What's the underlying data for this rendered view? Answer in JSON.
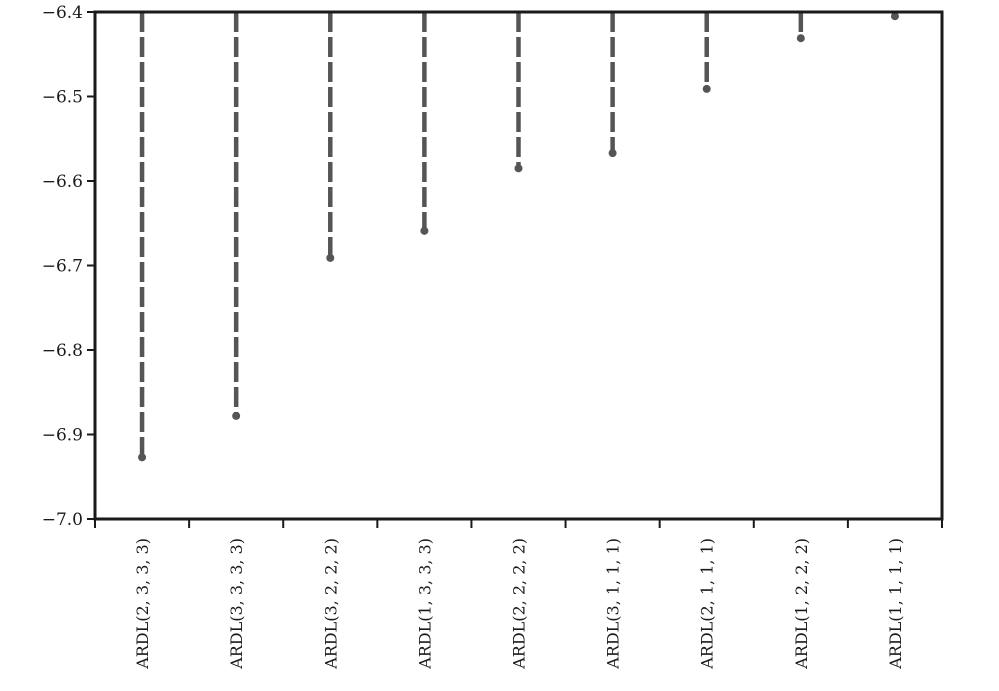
{
  "chart_data": {
    "type": "dot-stem",
    "title": "",
    "xlabel": "",
    "ylabel": "",
    "ylim": [
      -7.0,
      -6.4
    ],
    "yticks": [
      -6.4,
      -6.5,
      -6.6,
      -6.7,
      -6.8,
      -6.9,
      -7.0
    ],
    "ytick_labels": [
      "−6.4",
      "−6.5",
      "−6.6",
      "−6.7",
      "−6.8",
      "−6.9",
      "−7.0"
    ],
    "grid": false,
    "categories": [
      "ARDL(2, 3, 3, 3)",
      "ARDL(3, 3, 3, 3)",
      "ARDL(3, 2, 2, 2)",
      "ARDL(1, 3, 3, 3)",
      "ARDL(2, 2, 2, 2)",
      "ARDL(3, 1, 1, 1)",
      "ARDL(2, 1, 1, 1)",
      "ARDL(1, 2, 2, 2)",
      "ARDL(1, 1, 1, 1)"
    ],
    "values": [
      -6.927,
      -6.878,
      -6.691,
      -6.659,
      -6.585,
      -6.567,
      -6.491,
      -6.431,
      -6.405
    ],
    "colors": {
      "stem": "#555555",
      "marker": "#555555",
      "axis": "#1a1a1a"
    }
  }
}
